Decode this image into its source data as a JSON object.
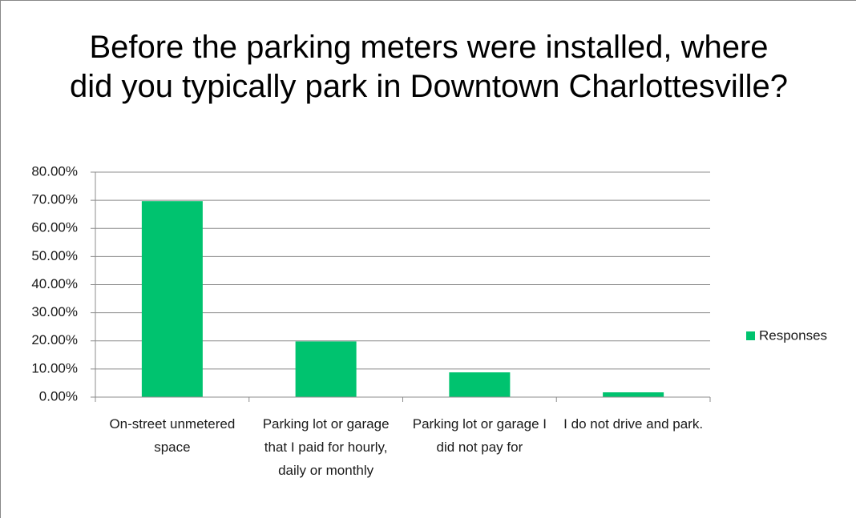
{
  "chart_data": {
    "type": "bar",
    "title": "Before the parking meters were installed, where did you typically park in Downtown Charlottesville?",
    "categories": [
      "On-street unmetered space",
      "Parking lot or garage that I paid for hourly, daily or monthly",
      "Parking lot or garage I did not pay for",
      "I do not drive and park."
    ],
    "series": [
      {
        "name": "Responses",
        "color": "#00c36f",
        "values": [
          69.7,
          19.8,
          8.8,
          1.7
        ]
      }
    ],
    "ylim": [
      0,
      80
    ],
    "yticks": [
      {
        "value": 0,
        "label": "0.00%"
      },
      {
        "value": 10,
        "label": "10.00%"
      },
      {
        "value": 20,
        "label": "20.00%"
      },
      {
        "value": 30,
        "label": "30.00%"
      },
      {
        "value": 40,
        "label": "40.00%"
      },
      {
        "value": 50,
        "label": "50.00%"
      },
      {
        "value": 60,
        "label": "60.00%"
      },
      {
        "value": 70,
        "label": "70.00%"
      },
      {
        "value": 80,
        "label": "80.00%"
      }
    ],
    "grid": true,
    "legend": "right"
  }
}
